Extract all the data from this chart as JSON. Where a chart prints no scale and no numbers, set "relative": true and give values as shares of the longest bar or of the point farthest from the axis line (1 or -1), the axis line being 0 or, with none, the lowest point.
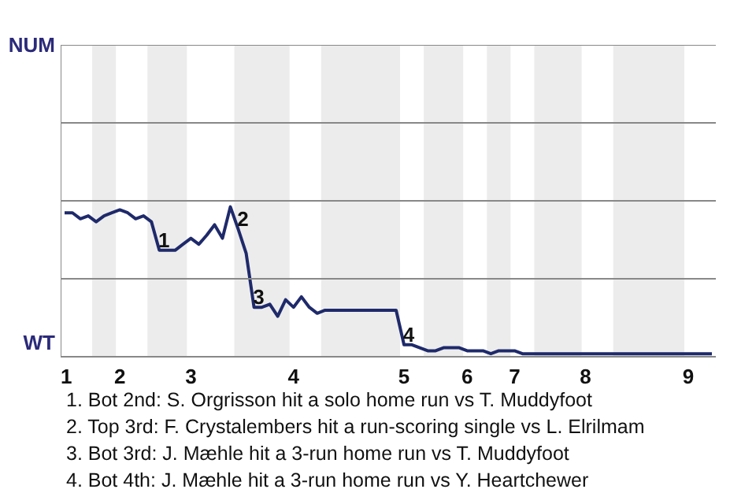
{
  "chart_data": {
    "type": "line",
    "relative": true,
    "categories": [
      "1",
      null,
      null,
      null,
      null,
      null,
      null,
      "2",
      null,
      null,
      null,
      null,
      null,
      null,
      null,
      null,
      "3",
      null,
      null,
      null,
      null,
      null,
      null,
      null,
      null,
      null,
      null,
      null,
      null,
      "4",
      null,
      null,
      null,
      null,
      null,
      null,
      null,
      null,
      null,
      null,
      null,
      null,
      null,
      "5",
      null,
      null,
      null,
      null,
      null,
      null,
      null,
      "6",
      null,
      null,
      null,
      null,
      null,
      "7",
      null,
      null,
      null,
      null,
      null,
      null,
      null,
      null,
      "8",
      null,
      null,
      null,
      null,
      null,
      null,
      null,
      null,
      null,
      null,
      null,
      null,
      "9",
      null,
      null,
      null
    ],
    "series": [
      {
        "color": "#1f2a6b",
        "values": [
          0.96,
          0.96,
          0.92,
          0.94,
          0.9,
          0.94,
          0.96,
          0.98,
          0.96,
          0.92,
          0.94,
          0.9,
          0.71,
          0.71,
          0.71,
          0.75,
          0.79,
          0.75,
          0.81,
          0.88,
          0.79,
          1,
          0.85,
          0.69,
          0.33,
          0.33,
          0.35,
          0.27,
          0.38,
          0.33,
          0.4,
          0.33,
          0.29,
          0.31,
          0.31,
          0.31,
          0.31,
          0.31,
          0.31,
          0.31,
          0.31,
          0.31,
          0.31,
          0.08,
          0.08,
          0.06,
          0.04,
          0.04,
          0.06,
          0.06,
          0.06,
          0.04,
          0.04,
          0.04,
          0.02,
          0.04,
          0.04,
          0.04,
          0.02,
          0.02,
          0.02,
          0.02,
          0.02,
          0.02,
          0.02,
          0.02,
          0.02,
          0.02,
          0.02,
          0.02,
          0.02,
          0.02,
          0.02,
          0.02,
          0.02,
          0.02,
          0.02,
          0.02,
          0.02,
          0.02,
          0.02,
          0.02,
          0.02
        ]
      }
    ],
    "line_style": "solid",
    "ref_lines": [
      {
        "axis": "y",
        "value": 0.52,
        "color": "#888888"
      },
      {
        "axis": "y",
        "value": 1.04,
        "color": "#888888"
      },
      {
        "axis": "y",
        "value": 1.56,
        "color": "#888888"
      },
      {
        "axis": "y",
        "value": 2.08,
        "color": "#888888"
      }
    ],
    "annotations": [
      "NUM",
      "WT",
      {
        "text": "1",
        "y": 0.71
      },
      {
        "text": "2",
        "y": 0.85
      },
      {
        "text": "3",
        "y": 0.33
      },
      {
        "text": "4",
        "y": 0.08
      },
      "1. Bot 2nd: S. Orgrisson hit a solo home run vs T. Muddyfoot",
      "2. Top 3rd: F. Crystalembers hit a run-scoring single vs L. Elrilmam",
      "3. Bot 3rd: J. Mæhle hit a 3-run home run vs T. Muddyfoot",
      "4. Bot 4th: J. Mæhle hit a 3-run home run vs Y. Heartchewer"
    ]
  }
}
